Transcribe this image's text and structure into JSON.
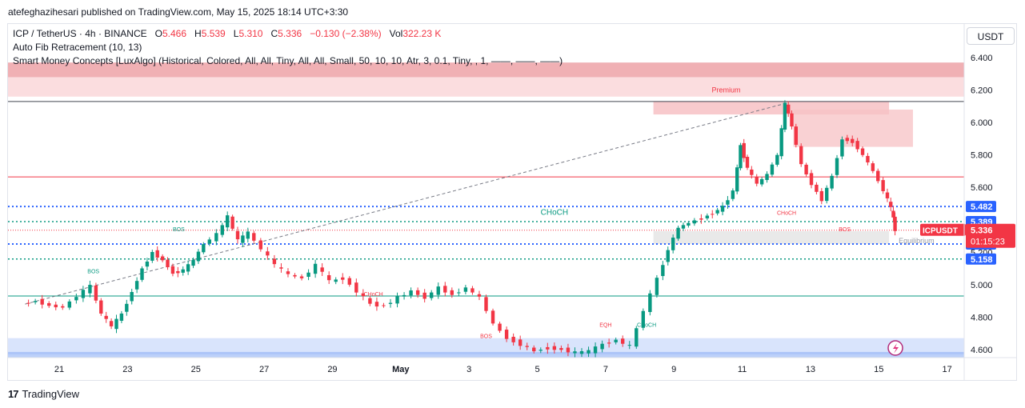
{
  "header": {
    "publisher": "atefeghazihesari published on TradingView.com, May 15, 2025 18:14 UTC+3:30"
  },
  "legend": {
    "symbol": "ICP / TetherUS · 4h · BINANCE",
    "o_label": "O",
    "o_value": "5.466",
    "h_label": "H",
    "h_value": "5.539",
    "l_label": "L",
    "l_value": "5.310",
    "c_label": "C",
    "c_value": "5.336",
    "change": "−0.130 (−2.38%)",
    "vol_label": "Vol",
    "vol_value": "322.23 K",
    "indicator1": "Auto Fib Retracement (10, 13)",
    "indicator2": "Smart Money Concepts [LuxAlgo] (Historical, Colored, All, All, Tiny, All, All, Small, 50, 10, 10, Atr, 3, 0.1, Tiny, , 1, ——, ——, ——)"
  },
  "currency_button": "USDT",
  "footer": {
    "brand": "TradingView",
    "logo": "17"
  },
  "colors": {
    "up": "#089981",
    "down": "#f23645",
    "blue_label": "#2962ff",
    "premium_zone": "#f7c1c4",
    "discount_zone": "#c9d8fb",
    "equilibrium_zone": "#e0e0e0"
  },
  "chart_data": {
    "type": "candlestick",
    "symbol": "ICPUSDT",
    "interval": "4h",
    "ylim": [
      4.55,
      6.45
    ],
    "y_ticks": [
      6.4,
      6.2,
      6.0,
      5.8,
      5.6,
      5.4,
      5.2,
      5.0,
      4.8,
      4.6
    ],
    "y_tick_labels": [
      "6.400",
      "6.200",
      "6.000",
      "5.800",
      "5.600",
      "5.400",
      "5.200",
      "5.000",
      "4.800",
      "4.600"
    ],
    "x_ticks": [
      {
        "label": "21",
        "day": 21
      },
      {
        "label": "23",
        "day": 23
      },
      {
        "label": "25",
        "day": 25
      },
      {
        "label": "27",
        "day": 27
      },
      {
        "label": "29",
        "day": 29
      },
      {
        "label": "May",
        "day": 31
      },
      {
        "label": "3",
        "day": 33
      },
      {
        "label": "5",
        "day": 35
      },
      {
        "label": "7",
        "day": 37
      },
      {
        "label": "9",
        "day": 39
      },
      {
        "label": "11",
        "day": 41
      },
      {
        "label": "13",
        "day": 43
      },
      {
        "label": "15",
        "day": 45
      },
      {
        "label": "17",
        "day": 47
      }
    ],
    "close_path": [
      [
        20.0,
        4.88
      ],
      [
        20.4,
        4.9
      ],
      [
        20.8,
        4.87
      ],
      [
        21.2,
        4.86
      ],
      [
        21.6,
        4.93
      ],
      [
        22.0,
        4.99
      ],
      [
        22.3,
        4.82
      ],
      [
        22.6,
        4.74
      ],
      [
        22.9,
        4.82
      ],
      [
        23.2,
        4.96
      ],
      [
        23.5,
        5.1
      ],
      [
        23.8,
        5.2
      ],
      [
        24.1,
        5.15
      ],
      [
        24.4,
        5.07
      ],
      [
        24.7,
        5.09
      ],
      [
        25.0,
        5.15
      ],
      [
        25.3,
        5.25
      ],
      [
        25.7,
        5.31
      ],
      [
        26.0,
        5.42
      ],
      [
        26.3,
        5.27
      ],
      [
        26.6,
        5.32
      ],
      [
        27.0,
        5.22
      ],
      [
        27.4,
        5.12
      ],
      [
        27.8,
        5.06
      ],
      [
        28.2,
        5.04
      ],
      [
        28.6,
        5.12
      ],
      [
        29.0,
        5.02
      ],
      [
        29.4,
        5.04
      ],
      [
        29.8,
        4.96
      ],
      [
        30.2,
        4.88
      ],
      [
        30.6,
        4.87
      ],
      [
        31.0,
        4.92
      ],
      [
        31.4,
        4.96
      ],
      [
        31.8,
        4.92
      ],
      [
        32.2,
        4.98
      ],
      [
        32.6,
        4.94
      ],
      [
        33.0,
        4.98
      ],
      [
        33.4,
        4.92
      ],
      [
        33.8,
        4.76
      ],
      [
        34.2,
        4.67
      ],
      [
        34.6,
        4.63
      ],
      [
        35.0,
        4.59
      ],
      [
        35.4,
        4.61
      ],
      [
        35.8,
        4.6
      ],
      [
        36.2,
        4.58
      ],
      [
        36.6,
        4.59
      ],
      [
        37.0,
        4.63
      ],
      [
        37.4,
        4.66
      ],
      [
        37.8,
        4.62
      ],
      [
        38.2,
        4.84
      ],
      [
        38.6,
        5.04
      ],
      [
        38.9,
        5.22
      ],
      [
        39.2,
        5.35
      ],
      [
        39.5,
        5.38
      ],
      [
        39.9,
        5.41
      ],
      [
        40.2,
        5.44
      ],
      [
        40.5,
        5.48
      ],
      [
        40.8,
        5.58
      ],
      [
        41.0,
        5.86
      ],
      [
        41.2,
        5.72
      ],
      [
        41.5,
        5.62
      ],
      [
        41.8,
        5.68
      ],
      [
        42.1,
        5.8
      ],
      [
        42.3,
        6.12
      ],
      [
        42.5,
        5.98
      ],
      [
        42.8,
        5.74
      ],
      [
        43.1,
        5.62
      ],
      [
        43.4,
        5.52
      ],
      [
        43.7,
        5.67
      ],
      [
        44.0,
        5.9
      ],
      [
        44.3,
        5.88
      ],
      [
        44.6,
        5.8
      ],
      [
        44.9,
        5.7
      ],
      [
        45.2,
        5.58
      ],
      [
        45.4,
        5.47
      ],
      [
        45.5,
        5.34
      ]
    ],
    "last_price": "5.336",
    "countdown": "01:15:23",
    "price_labels": [
      {
        "text": "5.482",
        "value": 5.482
      },
      {
        "text": "5.389",
        "value": 5.389
      },
      {
        "text": "5.251",
        "value": 5.251
      },
      {
        "text": "5.158",
        "value": 5.158
      }
    ],
    "horizontal_levels": [
      {
        "value": 6.13,
        "style": "solid-dark"
      },
      {
        "value": 5.665,
        "style": "solid-red"
      },
      {
        "value": 5.482,
        "style": "dotted-blue"
      },
      {
        "value": 5.389,
        "style": "dotted-green"
      },
      {
        "value": 5.251,
        "style": "dotted-blue"
      },
      {
        "value": 5.158,
        "style": "dotted-green"
      },
      {
        "value": 4.93,
        "style": "solid-green"
      }
    ],
    "zones": [
      {
        "name": "premium",
        "label": "Premium",
        "from": 6.16,
        "to": 6.37
      },
      {
        "name": "discount",
        "label": "",
        "from": 4.57,
        "to": 4.67
      },
      {
        "name": "equilibrium",
        "label": "Equilibrium",
        "from": 5.25,
        "to": 5.33
      }
    ],
    "annotations": [
      {
        "text": "CHoCH",
        "x": 35.5,
        "y": 5.43,
        "color": "up"
      },
      {
        "text": "BOS",
        "x": 24.5,
        "y": 5.33,
        "color": "up"
      },
      {
        "text": "BOS",
        "x": 22.0,
        "y": 5.07,
        "color": "up"
      },
      {
        "text": "CHoCH",
        "x": 30.2,
        "y": 4.93,
        "color": "down"
      },
      {
        "text": "BOS",
        "x": 33.5,
        "y": 4.67,
        "color": "down"
      },
      {
        "text": "EQH",
        "x": 37.0,
        "y": 4.74,
        "color": "down"
      },
      {
        "text": "CHoCH",
        "x": 38.2,
        "y": 4.74,
        "color": "up"
      },
      {
        "text": "CHoCH",
        "x": 42.3,
        "y": 5.43,
        "color": "down"
      },
      {
        "text": "BOS",
        "x": 44.0,
        "y": 5.33,
        "color": "down"
      }
    ]
  }
}
